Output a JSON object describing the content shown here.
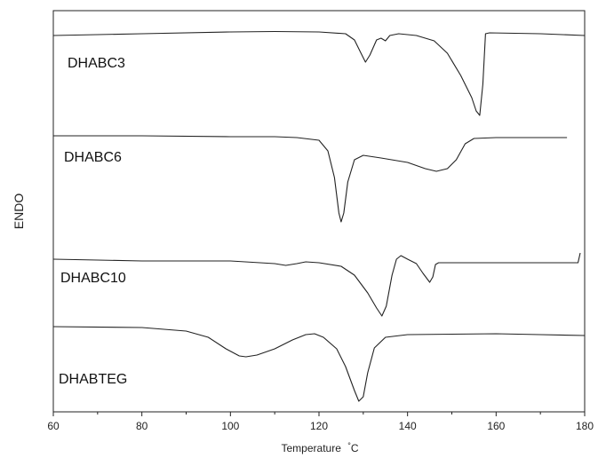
{
  "chart_data": {
    "type": "line",
    "title": "",
    "xlabel": "Temperature",
    "xlabel_unit": "°C",
    "ylabel": "ENDO",
    "xlim": [
      60,
      180
    ],
    "xticks": [
      "60",
      "80",
      "100",
      "120",
      "140",
      "160",
      "180"
    ],
    "y_ticks_shown": false,
    "grid": false,
    "legend": "none",
    "line_color": "#222222",
    "series": [
      {
        "name": "DHABC3",
        "points": [
          [
            60,
            40
          ],
          [
            80,
            38
          ],
          [
            100,
            36
          ],
          [
            110,
            35.5
          ],
          [
            120,
            36
          ],
          [
            126,
            38
          ],
          [
            128,
            45
          ],
          [
            129.5,
            60
          ],
          [
            130.5,
            70
          ],
          [
            131.5,
            62
          ],
          [
            133,
            45
          ],
          [
            134,
            43
          ],
          [
            135,
            46
          ],
          [
            136,
            40
          ],
          [
            138,
            38
          ],
          [
            142,
            40
          ],
          [
            146,
            46
          ],
          [
            149,
            60
          ],
          [
            152,
            85
          ],
          [
            154.5,
            110
          ],
          [
            155.5,
            125
          ],
          [
            156.3,
            130
          ],
          [
            157,
            95
          ],
          [
            157.6,
            38
          ],
          [
            158.5,
            37
          ],
          [
            170,
            38
          ],
          [
            180,
            40
          ]
        ]
      },
      {
        "name": "DHABC6",
        "points": [
          [
            60,
            153
          ],
          [
            80,
            153
          ],
          [
            100,
            154
          ],
          [
            110,
            154
          ],
          [
            115,
            155
          ],
          [
            120,
            158
          ],
          [
            122,
            170
          ],
          [
            123.5,
            200
          ],
          [
            124.5,
            240
          ],
          [
            125,
            250
          ],
          [
            125.6,
            240
          ],
          [
            126.5,
            205
          ],
          [
            128,
            180
          ],
          [
            130,
            175
          ],
          [
            134,
            178
          ],
          [
            140,
            183
          ],
          [
            144,
            190
          ],
          [
            146.5,
            193
          ],
          [
            149,
            190
          ],
          [
            151,
            180
          ],
          [
            153,
            162
          ],
          [
            155,
            156
          ],
          [
            160,
            155
          ],
          [
            170,
            155
          ],
          [
            176,
            155
          ]
        ]
      },
      {
        "name": "DHABC10",
        "points": [
          [
            60,
            292
          ],
          [
            70,
            293
          ],
          [
            80,
            294
          ],
          [
            100,
            294
          ],
          [
            110,
            297
          ],
          [
            112.5,
            299
          ],
          [
            115,
            297
          ],
          [
            117,
            295
          ],
          [
            120,
            296
          ],
          [
            125,
            300
          ],
          [
            128,
            310
          ],
          [
            131,
            330
          ],
          [
            133,
            347
          ],
          [
            134.2,
            356
          ],
          [
            135.2,
            345
          ],
          [
            136.5,
            310
          ],
          [
            137.5,
            292
          ],
          [
            138.5,
            288
          ],
          [
            140,
            292
          ],
          [
            142,
            297
          ],
          [
            143.5,
            308
          ],
          [
            145,
            318
          ],
          [
            145.7,
            312
          ],
          [
            146.3,
            298
          ],
          [
            147,
            296
          ],
          [
            160,
            296
          ],
          [
            170,
            296
          ],
          [
            178.5,
            296
          ],
          [
            179,
            285
          ]
        ]
      },
      {
        "name": "DHABTEG",
        "points": [
          [
            60,
            368
          ],
          [
            80,
            369
          ],
          [
            90,
            373
          ],
          [
            95,
            380
          ],
          [
            99,
            393
          ],
          [
            102,
            401
          ],
          [
            103.5,
            402
          ],
          [
            106,
            400
          ],
          [
            110,
            393
          ],
          [
            114,
            383
          ],
          [
            117,
            377
          ],
          [
            119,
            376
          ],
          [
            121,
            380
          ],
          [
            124,
            393
          ],
          [
            126,
            413
          ],
          [
            128,
            440
          ],
          [
            129,
            452
          ],
          [
            130,
            447
          ],
          [
            131,
            420
          ],
          [
            132.5,
            392
          ],
          [
            135,
            380
          ],
          [
            140,
            377
          ],
          [
            160,
            376
          ],
          [
            170,
            377
          ],
          [
            180,
            378
          ]
        ]
      }
    ]
  }
}
